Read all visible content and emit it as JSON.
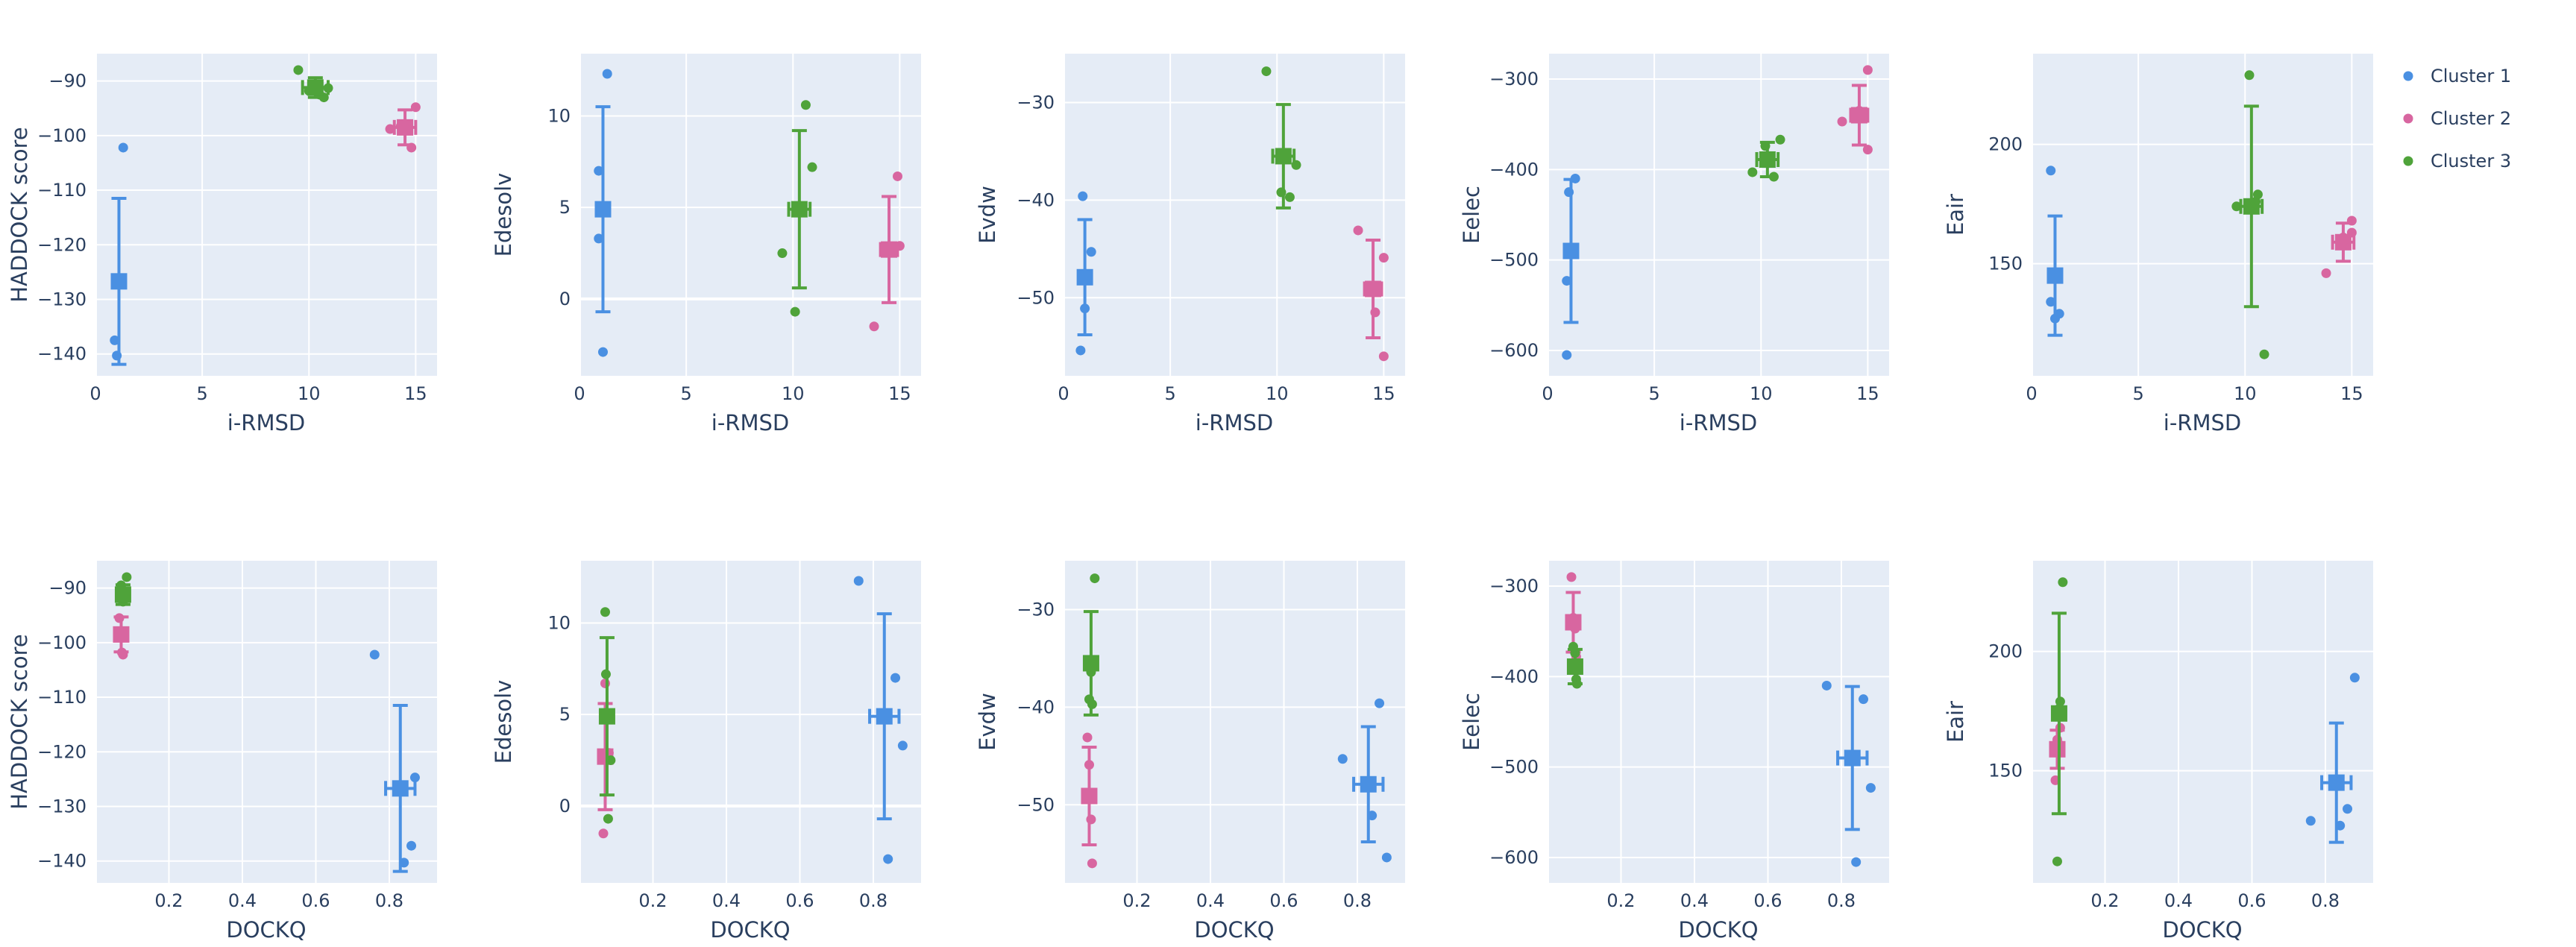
{
  "legend": {
    "position": "top-right",
    "items": [
      {
        "name": "Cluster 1",
        "color": "#4a90e2"
      },
      {
        "name": "Cluster 2",
        "color": "#d866a0"
      },
      {
        "name": "Cluster 3",
        "color": "#4fa33a"
      }
    ]
  },
  "chart_data": [
    {
      "type": "scatter",
      "xlabel": "i-RMSD",
      "ylabel": "HADDOCK score",
      "xlim": [
        0,
        16
      ],
      "ylim": [
        -144,
        -85
      ],
      "xticks": [
        0,
        5,
        10,
        15
      ],
      "yticks": [
        -140,
        -130,
        -120,
        -110,
        -100,
        -90
      ],
      "series": [
        {
          "name": "Cluster 1",
          "points": [
            [
              0.9,
              -137.5
            ],
            [
              1.0,
              -140.3
            ],
            [
              1.3,
              -102.2
            ]
          ],
          "mean": [
            1.1,
            -126.7
          ],
          "xerr": 0.1,
          "yerr": 15.2
        },
        {
          "name": "Cluster 2",
          "points": [
            [
              13.8,
              -98.8
            ],
            [
              14.3,
              -98.3
            ],
            [
              14.8,
              -102.2
            ],
            [
              15.0,
              -94.8
            ]
          ],
          "mean": [
            14.5,
            -98.5
          ],
          "xerr": 0.5,
          "yerr": 3.2
        },
        {
          "name": "Cluster 3",
          "points": [
            [
              9.5,
              -88.0
            ],
            [
              10.0,
              -91.8
            ],
            [
              10.5,
              -92.5
            ],
            [
              10.7,
              -93.0
            ],
            [
              10.9,
              -91.3
            ]
          ],
          "mean": [
            10.3,
            -91.2
          ],
          "xerr": 0.6,
          "yerr": 1.8
        }
      ]
    },
    {
      "type": "scatter",
      "xlabel": "i-RMSD",
      "ylabel": "Edesolv",
      "xlim": [
        0,
        16
      ],
      "ylim": [
        -4.2,
        13.4
      ],
      "xticks": [
        0,
        5,
        10,
        15
      ],
      "yticks": [
        0,
        5,
        10
      ],
      "series": [
        {
          "name": "Cluster 1",
          "points": [
            [
              0.9,
              7.0
            ],
            [
              0.9,
              3.3
            ],
            [
              1.1,
              -2.9
            ],
            [
              1.3,
              12.3
            ]
          ],
          "mean": [
            1.1,
            4.9
          ],
          "xerr": 0.1,
          "yerr": 5.6
        },
        {
          "name": "Cluster 2",
          "points": [
            [
              13.8,
              -1.5
            ],
            [
              14.6,
              2.7
            ],
            [
              14.9,
              6.7
            ],
            [
              15.0,
              2.9
            ]
          ],
          "mean": [
            14.5,
            2.7
          ],
          "xerr": 0.4,
          "yerr": 2.9
        },
        {
          "name": "Cluster 3",
          "points": [
            [
              9.5,
              2.5
            ],
            [
              10.1,
              -0.7
            ],
            [
              10.6,
              10.6
            ],
            [
              10.9,
              7.2
            ]
          ],
          "mean": [
            10.3,
            4.9
          ],
          "xerr": 0.5,
          "yerr": 4.3
        }
      ]
    },
    {
      "type": "scatter",
      "xlabel": "i-RMSD",
      "ylabel": "Evdw",
      "xlim": [
        0,
        16
      ],
      "ylim": [
        -58,
        -25
      ],
      "xticks": [
        0,
        5,
        10,
        15
      ],
      "yticks": [
        -50,
        -40,
        -30
      ],
      "series": [
        {
          "name": "Cluster 1",
          "points": [
            [
              0.8,
              -55.4
            ],
            [
              0.9,
              -39.6
            ],
            [
              1.0,
              -51.1
            ],
            [
              1.3,
              -45.3
            ]
          ],
          "mean": [
            1.0,
            -47.9
          ],
          "xerr": 0.1,
          "yerr": 5.9
        },
        {
          "name": "Cluster 2",
          "points": [
            [
              13.8,
              -43.1
            ],
            [
              14.6,
              -51.5
            ],
            [
              15.0,
              -45.9
            ],
            [
              15.0,
              -56.0
            ]
          ],
          "mean": [
            14.5,
            -49.1
          ],
          "xerr": 0.4,
          "yerr": 5.0
        },
        {
          "name": "Cluster 3",
          "points": [
            [
              9.5,
              -26.8
            ],
            [
              10.2,
              -39.2
            ],
            [
              10.6,
              -39.7
            ],
            [
              10.9,
              -36.4
            ]
          ],
          "mean": [
            10.3,
            -35.5
          ],
          "xerr": 0.5,
          "yerr": 5.3
        }
      ]
    },
    {
      "type": "scatter",
      "xlabel": "i-RMSD",
      "ylabel": "Eelec",
      "xlim": [
        0,
        16
      ],
      "ylim": [
        -628,
        -272
      ],
      "xticks": [
        0,
        5,
        10,
        15
      ],
      "yticks": [
        -600,
        -500,
        -400,
        -300
      ],
      "series": [
        {
          "name": "Cluster 1",
          "points": [
            [
              0.9,
              -523
            ],
            [
              0.9,
              -605
            ],
            [
              1.0,
              -425
            ],
            [
              1.3,
              -410
            ]
          ],
          "mean": [
            1.1,
            -490
          ],
          "xerr": 0.1,
          "yerr": 79
        },
        {
          "name": "Cluster 2",
          "points": [
            [
              13.8,
              -347
            ],
            [
              14.6,
              -335
            ],
            [
              15.0,
              -378
            ],
            [
              15.0,
              -290
            ]
          ],
          "mean": [
            14.6,
            -340
          ],
          "xerr": 0.4,
          "yerr": 33
        },
        {
          "name": "Cluster 3",
          "points": [
            [
              9.6,
              -403
            ],
            [
              10.2,
              -374
            ],
            [
              10.6,
              -408
            ],
            [
              10.9,
              -367
            ]
          ],
          "mean": [
            10.3,
            -389
          ],
          "xerr": 0.5,
          "yerr": 19
        }
      ]
    },
    {
      "type": "scatter",
      "xlabel": "i-RMSD",
      "ylabel": "Eair",
      "xlim": [
        0,
        16
      ],
      "ylim": [
        103,
        238
      ],
      "xticks": [
        0,
        5,
        10,
        15
      ],
      "yticks": [
        150,
        200
      ],
      "series": [
        {
          "name": "Cluster 1",
          "points": [
            [
              0.9,
              134
            ],
            [
              0.9,
              189
            ],
            [
              1.1,
              127
            ],
            [
              1.3,
              129
            ]
          ],
          "mean": [
            1.1,
            145
          ],
          "xerr": 0.1,
          "yerr": 25
        },
        {
          "name": "Cluster 2",
          "points": [
            [
              13.8,
              146
            ],
            [
              14.6,
              161
            ],
            [
              15.0,
              163
            ],
            [
              15.0,
              168
            ]
          ],
          "mean": [
            14.6,
            159
          ],
          "xerr": 0.5,
          "yerr": 8
        },
        {
          "name": "Cluster 3",
          "points": [
            [
              9.6,
              174
            ],
            [
              10.2,
              229
            ],
            [
              10.5,
              176
            ],
            [
              10.6,
              179
            ],
            [
              10.9,
              112
            ]
          ],
          "mean": [
            10.3,
            174
          ],
          "xerr": 0.5,
          "yerr": 42
        }
      ]
    },
    {
      "type": "scatter",
      "xlabel": "DOCKQ",
      "ylabel": "HADDOCK score",
      "xlim": [
        0,
        0.93
      ],
      "ylim": [
        -144,
        -85
      ],
      "xticks": [
        0.2,
        0.4,
        0.6,
        0.8
      ],
      "yticks": [
        -140,
        -130,
        -120,
        -110,
        -100,
        -90
      ],
      "series": [
        {
          "name": "Cluster 1",
          "points": [
            [
              0.76,
              -102.2
            ],
            [
              0.84,
              -140.3
            ],
            [
              0.86,
              -137.2
            ],
            [
              0.87,
              -124.7
            ]
          ],
          "mean": [
            0.83,
            -126.7
          ],
          "xerr": 0.04,
          "yerr": 15.2
        },
        {
          "name": "Cluster 2",
          "points": [
            [
              0.065,
              -95.5
            ],
            [
              0.068,
              -98.5
            ],
            [
              0.072,
              -101.8
            ],
            [
              0.075,
              -102.2
            ]
          ],
          "mean": [
            0.07,
            -98.5
          ],
          "xerr": 0.01,
          "yerr": 3.2
        },
        {
          "name": "Cluster 3",
          "points": [
            [
              0.07,
              -89.5
            ],
            [
              0.075,
              -92.5
            ],
            [
              0.078,
              -90.8
            ],
            [
              0.085,
              -88.0
            ]
          ],
          "mean": [
            0.075,
            -91.2
          ],
          "xerr": 0.01,
          "yerr": 1.8
        }
      ]
    },
    {
      "type": "scatter",
      "xlabel": "DOCKQ",
      "ylabel": "Edesolv",
      "xlim": [
        0,
        0.93
      ],
      "ylim": [
        -4.2,
        13.4
      ],
      "xticks": [
        0.2,
        0.4,
        0.6,
        0.8
      ],
      "yticks": [
        0,
        5,
        10
      ],
      "series": [
        {
          "name": "Cluster 1",
          "points": [
            [
              0.76,
              12.3
            ],
            [
              0.84,
              -2.9
            ],
            [
              0.86,
              7.0
            ],
            [
              0.88,
              3.3
            ]
          ],
          "mean": [
            0.83,
            4.9
          ],
          "xerr": 0.04,
          "yerr": 5.6
        },
        {
          "name": "Cluster 2",
          "points": [
            [
              0.065,
              -1.5
            ],
            [
              0.07,
              6.7
            ],
            [
              0.075,
              2.7
            ],
            [
              0.08,
              2.9
            ]
          ],
          "mean": [
            0.07,
            2.7
          ],
          "xerr": 0.01,
          "yerr": 2.9
        },
        {
          "name": "Cluster 3",
          "points": [
            [
              0.07,
              10.6
            ],
            [
              0.072,
              7.2
            ],
            [
              0.078,
              -0.7
            ],
            [
              0.085,
              2.5
            ]
          ],
          "mean": [
            0.075,
            4.9
          ],
          "xerr": 0.01,
          "yerr": 4.3
        }
      ]
    },
    {
      "type": "scatter",
      "xlabel": "DOCKQ",
      "ylabel": "Evdw",
      "xlim": [
        0,
        0.93
      ],
      "ylim": [
        -58,
        -25
      ],
      "xticks": [
        0.2,
        0.4,
        0.6,
        0.8
      ],
      "yticks": [
        -50,
        -40,
        -30
      ],
      "series": [
        {
          "name": "Cluster 1",
          "points": [
            [
              0.76,
              -45.3
            ],
            [
              0.84,
              -51.1
            ],
            [
              0.86,
              -39.6
            ],
            [
              0.88,
              -55.4
            ]
          ],
          "mean": [
            0.83,
            -47.9
          ],
          "xerr": 0.04,
          "yerr": 5.9
        },
        {
          "name": "Cluster 2",
          "points": [
            [
              0.065,
              -43.1
            ],
            [
              0.07,
              -45.9
            ],
            [
              0.075,
              -51.5
            ],
            [
              0.078,
              -56.0
            ]
          ],
          "mean": [
            0.07,
            -49.1
          ],
          "xerr": 0.01,
          "yerr": 5.0
        },
        {
          "name": "Cluster 3",
          "points": [
            [
              0.07,
              -39.2
            ],
            [
              0.075,
              -36.4
            ],
            [
              0.078,
              -39.7
            ],
            [
              0.085,
              -26.8
            ]
          ],
          "mean": [
            0.075,
            -35.5
          ],
          "xerr": 0.01,
          "yerr": 5.3
        }
      ]
    },
    {
      "type": "scatter",
      "xlabel": "DOCKQ",
      "ylabel": "Eelec",
      "xlim": [
        0,
        0.93
      ],
      "ylim": [
        -628,
        -272
      ],
      "xticks": [
        0.2,
        0.4,
        0.6,
        0.8
      ],
      "yticks": [
        -600,
        -500,
        -400,
        -300
      ],
      "series": [
        {
          "name": "Cluster 1",
          "points": [
            [
              0.76,
              -410
            ],
            [
              0.84,
              -605
            ],
            [
              0.86,
              -425
            ],
            [
              0.88,
              -523
            ]
          ],
          "mean": [
            0.83,
            -490
          ],
          "xerr": 0.04,
          "yerr": 79
        },
        {
          "name": "Cluster 2",
          "points": [
            [
              0.065,
              -290
            ],
            [
              0.07,
              -335
            ],
            [
              0.075,
              -347
            ],
            [
              0.078,
              -378
            ]
          ],
          "mean": [
            0.07,
            -340
          ],
          "xerr": 0.01,
          "yerr": 33
        },
        {
          "name": "Cluster 3",
          "points": [
            [
              0.07,
              -367
            ],
            [
              0.075,
              -374
            ],
            [
              0.078,
              -403
            ],
            [
              0.08,
              -408
            ]
          ],
          "mean": [
            0.075,
            -389
          ],
          "xerr": 0.01,
          "yerr": 19
        }
      ]
    },
    {
      "type": "scatter",
      "xlabel": "DOCKQ",
      "ylabel": "Eair",
      "xlim": [
        0,
        0.93
      ],
      "ylim": [
        103,
        238
      ],
      "xticks": [
        0.2,
        0.4,
        0.6,
        0.8
      ],
      "yticks": [
        150,
        200
      ],
      "series": [
        {
          "name": "Cluster 1",
          "points": [
            [
              0.76,
              129
            ],
            [
              0.84,
              127
            ],
            [
              0.86,
              134
            ],
            [
              0.88,
              189
            ]
          ],
          "mean": [
            0.83,
            145
          ],
          "xerr": 0.04,
          "yerr": 25
        },
        {
          "name": "Cluster 2",
          "points": [
            [
              0.065,
              146
            ],
            [
              0.07,
              163
            ],
            [
              0.075,
              161
            ],
            [
              0.078,
              168
            ]
          ],
          "mean": [
            0.07,
            159
          ],
          "xerr": 0.01,
          "yerr": 8
        },
        {
          "name": "Cluster 3",
          "points": [
            [
              0.07,
              112
            ],
            [
              0.075,
              176
            ],
            [
              0.078,
              179
            ],
            [
              0.085,
              229
            ]
          ],
          "mean": [
            0.075,
            174
          ],
          "xerr": 0.01,
          "yerr": 42
        }
      ]
    }
  ]
}
